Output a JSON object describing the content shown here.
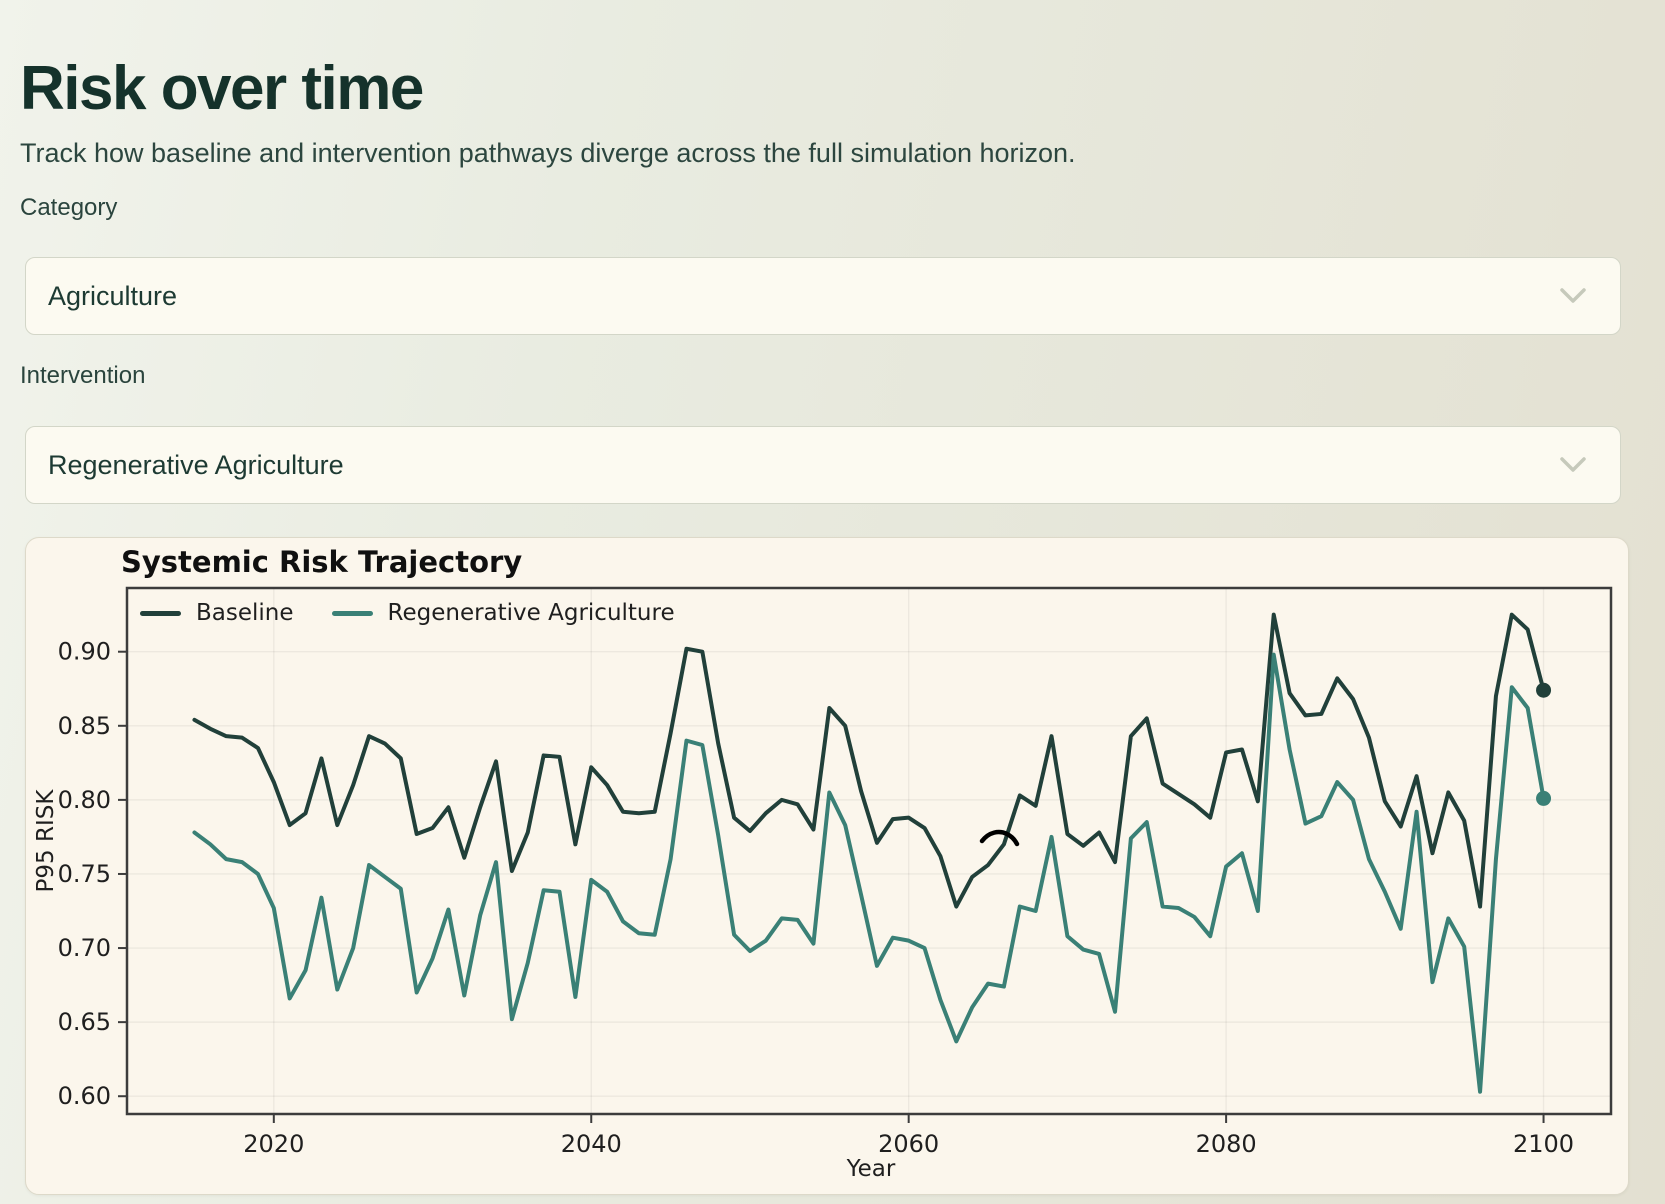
{
  "page": {
    "title": "Risk over time",
    "subtitle": "Track how baseline and intervention pathways diverge across the full simulation horizon."
  },
  "filters": {
    "category": {
      "label": "Category",
      "value": "Agriculture"
    },
    "intervention": {
      "label": "Intervention",
      "value": "Regenerative Agriculture"
    }
  },
  "chart_data": {
    "type": "line",
    "title": "Systemic Risk Trajectory",
    "xlabel": "Year",
    "ylabel": "P95 RISK",
    "grid": true,
    "legend_position": "upper left",
    "x_ticks": [
      2020,
      2040,
      2060,
      2080,
      2100
    ],
    "y_ticks": [
      0.6,
      0.65,
      0.7,
      0.75,
      0.8,
      0.85,
      0.9
    ],
    "xlim": [
      2010.75,
      2104.25
    ],
    "ylim": [
      0.588,
      0.943
    ],
    "years": [
      2015,
      2016,
      2017,
      2018,
      2019,
      2020,
      2021,
      2022,
      2023,
      2024,
      2025,
      2026,
      2027,
      2028,
      2029,
      2030,
      2031,
      2032,
      2033,
      2034,
      2035,
      2036,
      2037,
      2038,
      2039,
      2040,
      2041,
      2042,
      2043,
      2044,
      2045,
      2046,
      2047,
      2048,
      2049,
      2050,
      2051,
      2052,
      2053,
      2054,
      2055,
      2056,
      2057,
      2058,
      2059,
      2060,
      2061,
      2062,
      2063,
      2064,
      2065,
      2066,
      2067,
      2068,
      2069,
      2070,
      2071,
      2072,
      2073,
      2074,
      2075,
      2076,
      2077,
      2078,
      2079,
      2080,
      2081,
      2082,
      2083,
      2084,
      2085,
      2086,
      2087,
      2088,
      2089,
      2090,
      2091,
      2092,
      2093,
      2094,
      2095,
      2096,
      2097,
      2098,
      2099,
      2100
    ],
    "series": [
      {
        "name": "Baseline",
        "color": "#21403a",
        "values": [
          0.854,
          0.848,
          0.843,
          0.842,
          0.835,
          0.812,
          0.783,
          0.791,
          0.828,
          0.783,
          0.81,
          0.843,
          0.838,
          0.828,
          0.777,
          0.781,
          0.795,
          0.761,
          0.795,
          0.826,
          0.752,
          0.778,
          0.83,
          0.829,
          0.77,
          0.822,
          0.81,
          0.792,
          0.791,
          0.792,
          0.845,
          0.902,
          0.9,
          0.838,
          0.788,
          0.779,
          0.791,
          0.8,
          0.797,
          0.78,
          0.862,
          0.85,
          0.806,
          0.771,
          0.787,
          0.788,
          0.781,
          0.762,
          0.728,
          0.748,
          0.756,
          0.77,
          0.803,
          0.796,
          0.843,
          0.777,
          0.769,
          0.778,
          0.758,
          0.843,
          0.855,
          0.811,
          0.804,
          0.797,
          0.788,
          0.832,
          0.834,
          0.799,
          0.925,
          0.872,
          0.857,
          0.858,
          0.882,
          0.868,
          0.842,
          0.799,
          0.782,
          0.816,
          0.764,
          0.805,
          0.786,
          0.728,
          0.87,
          0.925,
          0.915,
          0.874
        ]
      },
      {
        "name": "Regenerative Agriculture",
        "color": "#3a8076",
        "values": [
          0.778,
          0.77,
          0.76,
          0.758,
          0.75,
          0.727,
          0.666,
          0.685,
          0.734,
          0.672,
          0.7,
          0.756,
          0.748,
          0.74,
          0.67,
          0.693,
          0.726,
          0.668,
          0.722,
          0.758,
          0.652,
          0.69,
          0.739,
          0.738,
          0.667,
          0.746,
          0.738,
          0.718,
          0.71,
          0.709,
          0.76,
          0.84,
          0.837,
          0.776,
          0.709,
          0.698,
          0.705,
          0.72,
          0.719,
          0.703,
          0.805,
          0.783,
          0.736,
          0.688,
          0.707,
          0.705,
          0.7,
          0.665,
          0.637,
          0.66,
          0.676,
          0.674,
          0.728,
          0.725,
          0.775,
          0.708,
          0.699,
          0.696,
          0.657,
          0.774,
          0.785,
          0.728,
          0.727,
          0.721,
          0.708,
          0.755,
          0.764,
          0.725,
          0.898,
          0.834,
          0.784,
          0.789,
          0.812,
          0.8,
          0.76,
          0.738,
          0.713,
          0.792,
          0.677,
          0.72,
          0.701,
          0.603,
          0.76,
          0.876,
          0.862,
          0.801
        ]
      }
    ]
  }
}
